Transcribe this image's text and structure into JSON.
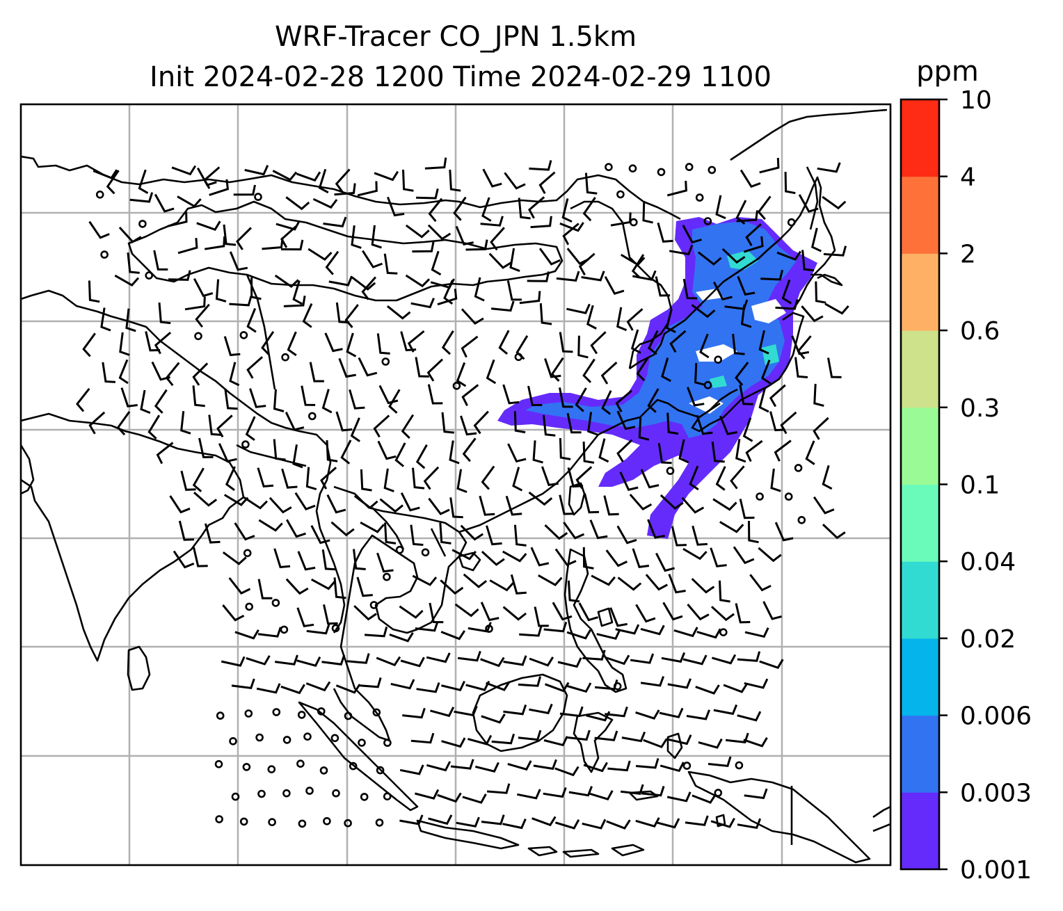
{
  "title": {
    "line1": "WRF-Tracer CO_JPN 1.5km",
    "line2": "Init 2024-02-28 1200 Time 2024-02-29 1100"
  },
  "colorbar": {
    "unit": "ppm",
    "levels": [
      "0.001",
      "0.003",
      "0.006",
      "0.02",
      "0.04",
      "0.1",
      "0.3",
      "0.6",
      "2",
      "4",
      "10"
    ],
    "colors": [
      "#652bfb",
      "#3273f2",
      "#04b4ea",
      "#32dbd2",
      "#6afbba",
      "#9afb96",
      "#cde28a",
      "#feb164",
      "#fe723a",
      "#fe2b15"
    ]
  },
  "map": {
    "gridlines": "on",
    "grid_color": "#b0b0b0",
    "plume_colors": [
      "#652bfb",
      "#3273f2",
      "#32dbd2"
    ]
  }
}
